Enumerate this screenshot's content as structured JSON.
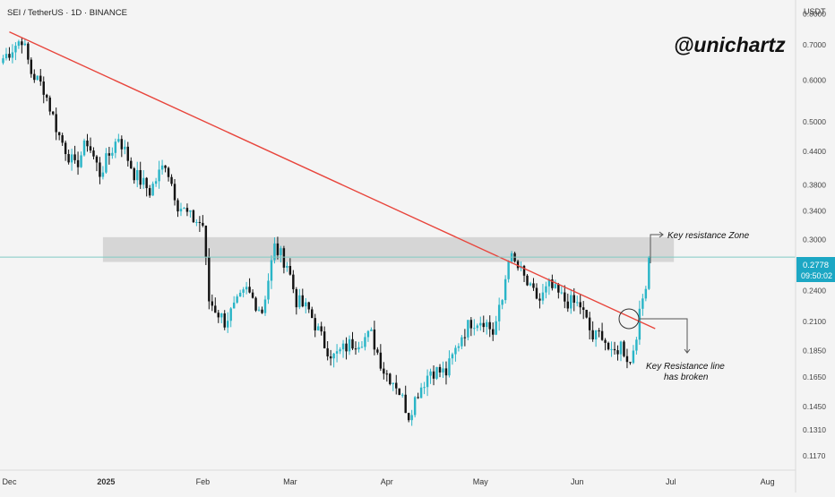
{
  "header": {
    "symbol_line": "SEI / TetherUS · 1D · BINANCE",
    "currency": "USDT",
    "watermark": "@unichartz"
  },
  "price_axis": {
    "ticks": [
      {
        "label": "0.8000",
        "value": 0.8
      },
      {
        "label": "0.7000",
        "value": 0.7
      },
      {
        "label": "0.6000",
        "value": 0.6
      },
      {
        "label": "0.5000",
        "value": 0.5
      },
      {
        "label": "0.4400",
        "value": 0.44
      },
      {
        "label": "0.3800",
        "value": 0.38
      },
      {
        "label": "0.3400",
        "value": 0.34
      },
      {
        "label": "0.3000",
        "value": 0.3
      },
      {
        "label": "0.2400",
        "value": 0.24
      },
      {
        "label": "0.2100",
        "value": 0.21
      },
      {
        "label": "0.1850",
        "value": 0.185
      },
      {
        "label": "0.1650",
        "value": 0.165
      },
      {
        "label": "0.1450",
        "value": 0.145
      },
      {
        "label": "0.1310",
        "value": 0.131
      },
      {
        "label": "0.1170",
        "value": 0.117
      }
    ],
    "current_price": "0.2778",
    "countdown": "09:50:02"
  },
  "time_axis": [
    {
      "label": "Dec",
      "date": "2024-12-01",
      "bold": false
    },
    {
      "label": "2025",
      "date": "2025-01-01",
      "bold": true
    },
    {
      "label": "Feb",
      "date": "2025-02-01",
      "bold": false
    },
    {
      "label": "Mar",
      "date": "2025-03-01",
      "bold": false
    },
    {
      "label": "Apr",
      "date": "2025-04-01",
      "bold": false
    },
    {
      "label": "May",
      "date": "2025-05-01",
      "bold": false
    },
    {
      "label": "Jun",
      "date": "2025-06-01",
      "bold": false
    },
    {
      "label": "Jul",
      "date": "2025-07-01",
      "bold": false
    },
    {
      "label": "Aug",
      "date": "2025-08-01",
      "bold": false
    }
  ],
  "annotations": {
    "zone_label": "Key resistance Zone",
    "break_label_line1": "Key Resistance line",
    "break_label_line2": "has broken"
  },
  "colors": {
    "up": "#26a69a",
    "up_bright": "#2ab5c7",
    "down": "#131313",
    "trendline": "#e8453c",
    "zone": "#b8b8b8",
    "price_line": "#80cbc4",
    "price_tag": "#1ca7c4"
  },
  "chart_data": {
    "type": "candlestick",
    "scale": "log",
    "ylim": [
      0.11,
      0.85
    ],
    "xlim": [
      "2024-11-28",
      "2025-08-10"
    ],
    "trendline": {
      "from": {
        "date": "2024-12-01",
        "price": 0.74
      },
      "to": {
        "date": "2025-06-26",
        "price": 0.2035
      }
    },
    "resistance_zone": {
      "from_date": "2024-12-31",
      "to_date": "2025-07-02",
      "low": 0.272,
      "high": 0.303
    },
    "break_point": {
      "date": "2025-06-21",
      "price": 0.22
    },
    "anchors": [
      [
        "2024-11-29",
        0.66
      ],
      [
        "2024-12-05",
        0.72
      ],
      [
        "2024-12-08",
        0.62
      ],
      [
        "2024-12-12",
        0.58
      ],
      [
        "2024-12-17",
        0.47
      ],
      [
        "2024-12-22",
        0.41
      ],
      [
        "2024-12-26",
        0.46
      ],
      [
        "2024-12-30",
        0.4
      ],
      [
        "2025-01-05",
        0.47
      ],
      [
        "2025-01-10",
        0.4
      ],
      [
        "2025-01-15",
        0.37
      ],
      [
        "2025-01-20",
        0.42
      ],
      [
        "2025-01-24",
        0.35
      ],
      [
        "2025-01-28",
        0.33
      ],
      [
        "2025-02-01",
        0.32
      ],
      [
        "2025-02-03",
        0.23
      ],
      [
        "2025-02-08",
        0.21
      ],
      [
        "2025-02-15",
        0.24
      ],
      [
        "2025-02-20",
        0.22
      ],
      [
        "2025-02-24",
        0.29
      ],
      [
        "2025-02-28",
        0.27
      ],
      [
        "2025-03-03",
        0.23
      ],
      [
        "2025-03-07",
        0.22
      ],
      [
        "2025-03-12",
        0.19
      ],
      [
        "2025-03-15",
        0.18
      ],
      [
        "2025-03-20",
        0.19
      ],
      [
        "2025-03-27",
        0.198
      ],
      [
        "2025-03-31",
        0.17
      ],
      [
        "2025-04-04",
        0.16
      ],
      [
        "2025-04-08",
        0.14
      ],
      [
        "2025-04-11",
        0.155
      ],
      [
        "2025-04-15",
        0.17
      ],
      [
        "2025-04-20",
        0.168
      ],
      [
        "2025-04-25",
        0.198
      ],
      [
        "2025-04-28",
        0.21
      ],
      [
        "2025-05-02",
        0.212
      ],
      [
        "2025-05-05",
        0.2
      ],
      [
        "2025-05-08",
        0.23
      ],
      [
        "2025-05-10",
        0.28
      ],
      [
        "2025-05-14",
        0.26
      ],
      [
        "2025-05-17",
        0.24
      ],
      [
        "2025-05-20",
        0.23
      ],
      [
        "2025-05-23",
        0.245
      ],
      [
        "2025-05-28",
        0.23
      ],
      [
        "2025-06-02",
        0.225
      ],
      [
        "2025-06-06",
        0.195
      ],
      [
        "2025-06-09",
        0.2
      ],
      [
        "2025-06-12",
        0.18
      ],
      [
        "2025-06-15",
        0.19
      ],
      [
        "2025-06-18",
        0.175
      ],
      [
        "2025-06-21",
        0.215
      ],
      [
        "2025-06-23",
        0.25
      ],
      [
        "2025-06-24",
        0.2778
      ]
    ]
  }
}
